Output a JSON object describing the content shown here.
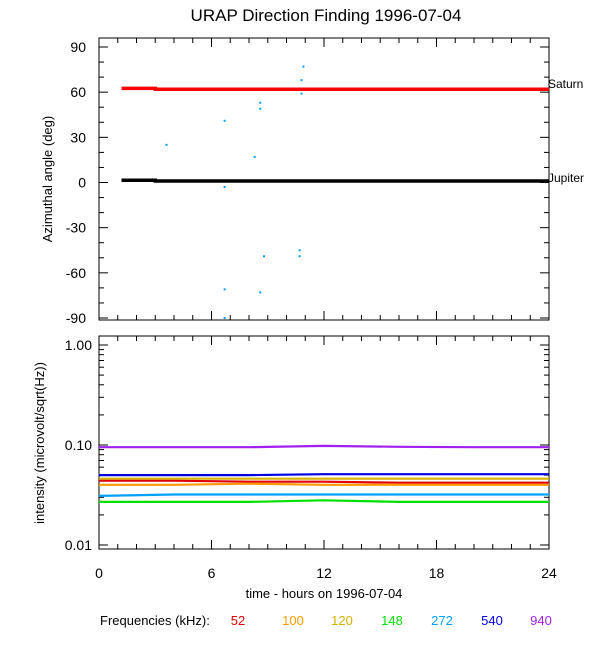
{
  "chart_data": [
    {
      "type": "line",
      "title": "URAP Direction Finding  1996-07-04",
      "ylabel": "Azimuthal angle (deg)",
      "xlim": [
        0,
        24
      ],
      "ylim": [
        -90,
        90
      ],
      "yticks": [
        "90",
        "60",
        "30",
        "0",
        "-30",
        "-60",
        "-90"
      ],
      "grid": false,
      "series": [
        {
          "name": "Saturn",
          "color": "#ff0000",
          "x": [
            1.2,
            3.0,
            3.0,
            24.0
          ],
          "y": [
            62.5,
            62.5,
            62.0,
            62.0
          ]
        },
        {
          "name": "Jupiter",
          "color": "#000000",
          "x": [
            1.2,
            3.0,
            3.0,
            24.0
          ],
          "y": [
            1.5,
            1.5,
            1.0,
            1.0
          ]
        }
      ],
      "points": {
        "color": "#00a0ff",
        "x": [
          3.6,
          6.7,
          6.7,
          6.7,
          6.7,
          8.3,
          8.6,
          8.6,
          8.6,
          8.8,
          10.7,
          10.7,
          10.8,
          10.8,
          10.9
        ],
        "y": [
          25,
          41,
          -3,
          -71,
          -90,
          17,
          53,
          49,
          -73,
          -49,
          -45,
          -49,
          68,
          59,
          77
        ]
      }
    },
    {
      "type": "line",
      "ylabel": "intensity (microvolt/sqrt(Hz))",
      "xlabel": "time - hours on 1996-07-04",
      "xlim": [
        0,
        24
      ],
      "ylim": [
        0.01,
        1.0
      ],
      "yscale": "log",
      "xticks": [
        "0",
        "6",
        "12",
        "18",
        "24"
      ],
      "yticks": [
        "1.00",
        "0.10",
        "0.01"
      ],
      "grid": false,
      "series": [
        {
          "name": "52",
          "color": "#e00000",
          "values": [
            0.044,
            0.044,
            0.043,
            0.043,
            0.042,
            0.042,
            0.042
          ]
        },
        {
          "name": "100",
          "color": "#ff9900",
          "values": [
            0.04,
            0.04,
            0.041,
            0.04,
            0.04,
            0.04,
            0.04
          ]
        },
        {
          "name": "120",
          "color": "#d4b000",
          "values": [
            0.046,
            0.046,
            0.046,
            0.046,
            0.046,
            0.046,
            0.046
          ]
        },
        {
          "name": "148",
          "color": "#00e000",
          "values": [
            0.027,
            0.027,
            0.027,
            0.028,
            0.027,
            0.027,
            0.027
          ]
        },
        {
          "name": "272",
          "color": "#00a0ff",
          "values": [
            0.031,
            0.032,
            0.032,
            0.032,
            0.032,
            0.032,
            0.032
          ]
        },
        {
          "name": "540",
          "color": "#0000e0",
          "values": [
            0.05,
            0.05,
            0.05,
            0.051,
            0.051,
            0.051,
            0.051
          ]
        },
        {
          "name": "940",
          "color": "#a020f0",
          "values": [
            0.095,
            0.095,
            0.095,
            0.098,
            0.096,
            0.095,
            0.095
          ]
        }
      ],
      "x": [
        0,
        4,
        8,
        12,
        16,
        20,
        24
      ]
    }
  ],
  "legend": {
    "label": "Frequencies (kHz):",
    "items": [
      "52",
      "100",
      "120",
      "148",
      "272",
      "540",
      "940"
    ]
  }
}
